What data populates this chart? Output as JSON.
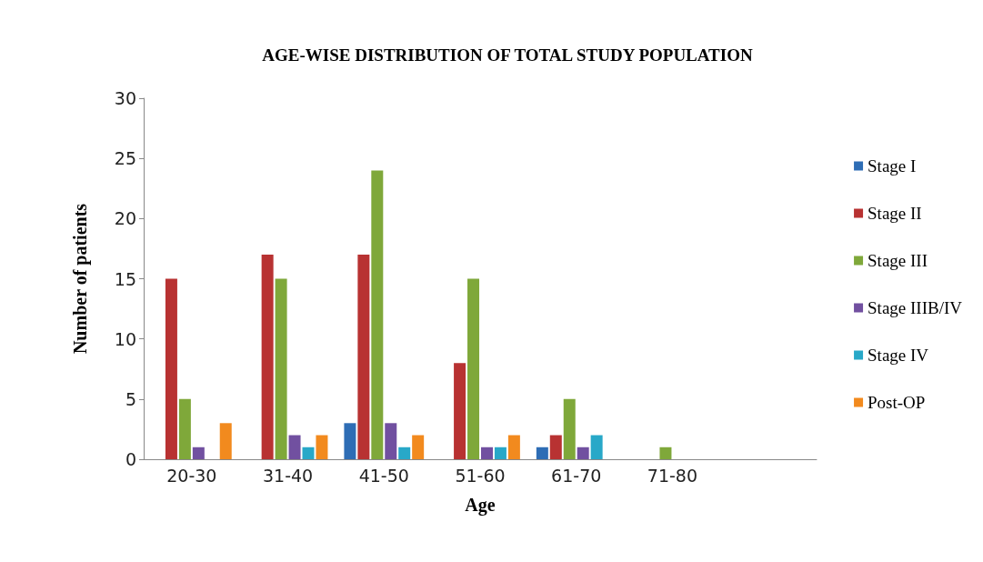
{
  "chart_data": {
    "type": "bar",
    "title": "AGE-WISE DISTRIBUTION OF TOTAL STUDY POPULATION",
    "xlabel": "Age",
    "ylabel": "Number of patients",
    "categories": [
      "20-30",
      "31-40",
      "41-50",
      "51-60",
      "61-70",
      "71-80",
      null
    ],
    "series": [
      {
        "name": "Stage I",
        "color": "#2e6db5",
        "values": [
          null,
          null,
          3,
          null,
          1,
          null,
          null
        ]
      },
      {
        "name": "Stage II",
        "color": "#b83232",
        "values": [
          15,
          17,
          17,
          8,
          2,
          null,
          null
        ]
      },
      {
        "name": "Stage III",
        "color": "#7fa83a",
        "values": [
          5,
          15,
          24,
          15,
          5,
          1,
          null
        ]
      },
      {
        "name": "Stage IIIB/IV",
        "color": "#7150a0",
        "values": [
          1,
          2,
          3,
          1,
          1,
          null,
          null
        ]
      },
      {
        "name": "Stage IV",
        "color": "#28a8c8",
        "values": [
          null,
          1,
          1,
          1,
          2,
          null,
          null
        ]
      },
      {
        "name": "Post-OP",
        "color": "#f28a1e",
        "values": [
          3,
          2,
          2,
          2,
          null,
          null,
          null
        ]
      }
    ],
    "ylim": [
      0,
      30
    ],
    "yticks": [
      0,
      5,
      10,
      15,
      20,
      25,
      30
    ],
    "grid": false,
    "legend": "right"
  }
}
